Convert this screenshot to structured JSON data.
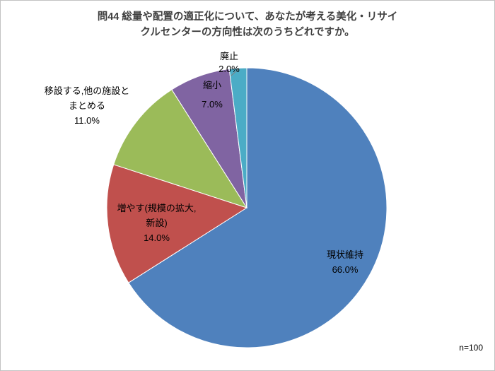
{
  "chart_data": {
    "type": "pie",
    "title": "問44 総量や配置の適正化について、あなたが考える美化・リサイクルセンターの方向性は次のうちどれですか。",
    "title_line1": "問44  総量や配置の適正化について、あなたが考える美化・リサイ",
    "title_line2": "クルセンターの方向性は次のうちどれですか。",
    "n_label": "n=100",
    "legend": "none",
    "start_angle_deg": 0,
    "direction": "clockwise",
    "slices": [
      {
        "name": "maintain",
        "label": "現状維持",
        "value": 66.0,
        "pct_label": "66.0%",
        "color": "#4F81BD"
      },
      {
        "name": "increase",
        "label": "増やす(規模の拡大,新設)",
        "label_line1": "増やす(規模の拡大,",
        "label_line2": "新設)",
        "value": 14.0,
        "pct_label": "14.0%",
        "color": "#C0504D"
      },
      {
        "name": "relocate-merge",
        "label": "移設する,他の施設とまとめる",
        "label_line1": "移設する,他の施設と",
        "label_line2": "まとめる",
        "value": 11.0,
        "pct_label": "11.0%",
        "color": "#9BBB59"
      },
      {
        "name": "shrink",
        "label": "縮小",
        "value": 7.0,
        "pct_label": "7.0%",
        "color": "#8064A2"
      },
      {
        "name": "abolish",
        "label": "廃止",
        "value": 2.0,
        "pct_label": "2.0%",
        "color": "#4BACC6"
      }
    ]
  }
}
